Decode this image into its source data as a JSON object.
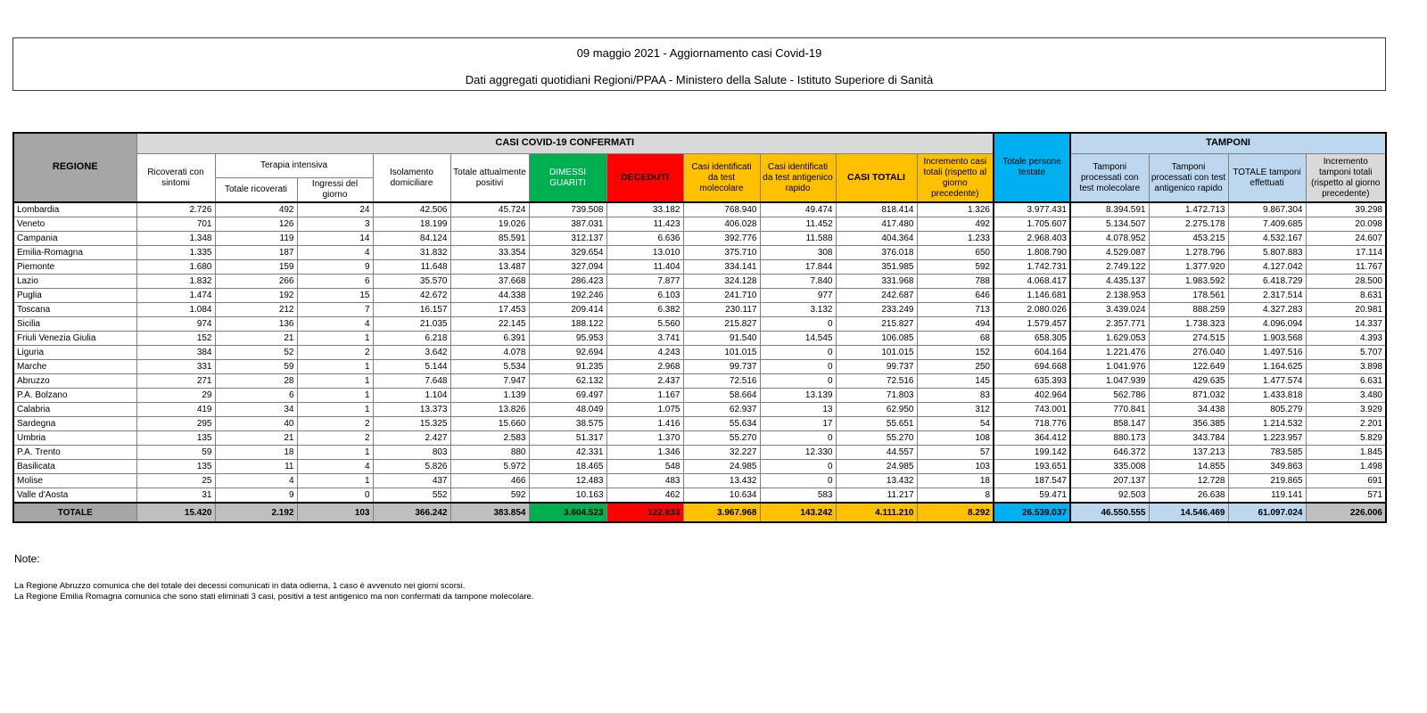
{
  "title": {
    "line1": "09 maggio 2021 - Aggiornamento casi Covid-19",
    "line2": "Dati aggregati quotidiani Regioni/PPAA - Ministero della Salute - Istituto Superiore di Sanità"
  },
  "colors": {
    "header_gray": "#A6A6A6",
    "band_gray": "#D9D9D9",
    "green": "#00B050",
    "red": "#FF0000",
    "yellow": "#FFC000",
    "cyan": "#00B0F0",
    "light_blue": "#BDD7EE",
    "total_gray": "#BFBFBF"
  },
  "table": {
    "headers": {
      "regione": "REGIONE",
      "casi_confermati": "CASI COVID-19 CONFERMATI",
      "tamponi_band": "TAMPONI",
      "ricoverati": "Ricoverati con sintomi",
      "terapia_intensiva": "Terapia intensiva",
      "totale_ricoverati": "Totale ricoverati",
      "ingressi_giorno": "Ingressi del giorno",
      "isolamento": "Isolamento domiciliare",
      "attualmente_positivi": "Totale attualmente positivi",
      "dimessi": "DIMESSI GUARITI",
      "deceduti": "DECEDUTI",
      "casi_molecolare": "Casi identificati da test molecolare",
      "casi_antigenico": "Casi identificati da test antigenico rapido",
      "casi_totali": "CASI TOTALI",
      "incremento_casi": "Incremento casi totali (rispetto al giorno precedente)",
      "persone_testate": "Totale persone testate",
      "tamponi_molecolare": "Tamponi processati con test molecolare",
      "tamponi_antigenico": "Tamponi processati con test antigenico rapido",
      "totale_tamponi": "TOTALE tamponi effettuati",
      "incremento_tamponi": "Incremento tamponi totali (rispetto al giorno precedente)"
    },
    "rows": [
      {
        "region": "Lombardia",
        "values": [
          "2.726",
          "492",
          "24",
          "42.506",
          "45.724",
          "739.508",
          "33.182",
          "768.940",
          "49.474",
          "818.414",
          "1.326",
          "3.977.431",
          "8.394.591",
          "1.472.713",
          "9.867.304",
          "39.298"
        ]
      },
      {
        "region": "Veneto",
        "values": [
          "701",
          "126",
          "3",
          "18.199",
          "19.026",
          "387.031",
          "11.423",
          "406.028",
          "11.452",
          "417.480",
          "492",
          "1.705.607",
          "5.134.507",
          "2.275.178",
          "7.409.685",
          "20.098"
        ]
      },
      {
        "region": "Campania",
        "values": [
          "1.348",
          "119",
          "14",
          "84.124",
          "85.591",
          "312.137",
          "6.636",
          "392.776",
          "11.588",
          "404.364",
          "1.233",
          "2.968.403",
          "4.078.952",
          "453.215",
          "4.532.167",
          "24.607"
        ]
      },
      {
        "region": "Emilia-Romagna",
        "values": [
          "1.335",
          "187",
          "4",
          "31.832",
          "33.354",
          "329.654",
          "13.010",
          "375.710",
          "308",
          "376.018",
          "650",
          "1.808.790",
          "4.529.087",
          "1.278.796",
          "5.807.883",
          "17.114"
        ]
      },
      {
        "region": "Piemonte",
        "values": [
          "1.680",
          "159",
          "9",
          "11.648",
          "13.487",
          "327.094",
          "11.404",
          "334.141",
          "17.844",
          "351.985",
          "592",
          "1.742.731",
          "2.749.122",
          "1.377.920",
          "4.127.042",
          "11.767"
        ]
      },
      {
        "region": "Lazio",
        "values": [
          "1.832",
          "266",
          "6",
          "35.570",
          "37.668",
          "286.423",
          "7.877",
          "324.128",
          "7.840",
          "331.968",
          "788",
          "4.068.417",
          "4.435.137",
          "1.983.592",
          "6.418.729",
          "28.500"
        ]
      },
      {
        "region": "Puglia",
        "values": [
          "1.474",
          "192",
          "15",
          "42.672",
          "44.338",
          "192.246",
          "6.103",
          "241.710",
          "977",
          "242.687",
          "646",
          "1.146.681",
          "2.138.953",
          "178.561",
          "2.317.514",
          "8.631"
        ]
      },
      {
        "region": "Toscana",
        "values": [
          "1.084",
          "212",
          "7",
          "16.157",
          "17.453",
          "209.414",
          "6.382",
          "230.117",
          "3.132",
          "233.249",
          "713",
          "2.080.026",
          "3.439.024",
          "888.259",
          "4.327.283",
          "20.981"
        ]
      },
      {
        "region": "Sicilia",
        "values": [
          "974",
          "136",
          "4",
          "21.035",
          "22.145",
          "188.122",
          "5.560",
          "215.827",
          "0",
          "215.827",
          "494",
          "1.579.457",
          "2.357.771",
          "1.738.323",
          "4.096.094",
          "14.337"
        ]
      },
      {
        "region": "Friuli Venezia Giulia",
        "values": [
          "152",
          "21",
          "1",
          "6.218",
          "6.391",
          "95.953",
          "3.741",
          "91.540",
          "14.545",
          "106.085",
          "68",
          "658.305",
          "1.629.053",
          "274.515",
          "1.903.568",
          "4.393"
        ]
      },
      {
        "region": "Liguria",
        "values": [
          "384",
          "52",
          "2",
          "3.642",
          "4.078",
          "92.694",
          "4.243",
          "101.015",
          "0",
          "101.015",
          "152",
          "604.164",
          "1.221.476",
          "276.040",
          "1.497.516",
          "5.707"
        ]
      },
      {
        "region": "Marche",
        "values": [
          "331",
          "59",
          "1",
          "5.144",
          "5.534",
          "91.235",
          "2.968",
          "99.737",
          "0",
          "99.737",
          "250",
          "694.668",
          "1.041.976",
          "122.649",
          "1.164.625",
          "3.898"
        ]
      },
      {
        "region": "Abruzzo",
        "values": [
          "271",
          "28",
          "1",
          "7.648",
          "7.947",
          "62.132",
          "2.437",
          "72.516",
          "0",
          "72.516",
          "145",
          "635.393",
          "1.047.939",
          "429.635",
          "1.477.574",
          "6.631"
        ]
      },
      {
        "region": "P.A. Bolzano",
        "values": [
          "29",
          "6",
          "1",
          "1.104",
          "1.139",
          "69.497",
          "1.167",
          "58.664",
          "13.139",
          "71.803",
          "83",
          "402.964",
          "562.786",
          "871.032",
          "1.433.818",
          "3.480"
        ]
      },
      {
        "region": "Calabria",
        "values": [
          "419",
          "34",
          "1",
          "13.373",
          "13.826",
          "48.049",
          "1.075",
          "62.937",
          "13",
          "62.950",
          "312",
          "743.001",
          "770.841",
          "34.438",
          "805.279",
          "3.929"
        ]
      },
      {
        "region": "Sardegna",
        "values": [
          "295",
          "40",
          "2",
          "15.325",
          "15.660",
          "38.575",
          "1.416",
          "55.634",
          "17",
          "55.651",
          "54",
          "718.776",
          "858.147",
          "356.385",
          "1.214.532",
          "2.201"
        ]
      },
      {
        "region": "Umbria",
        "values": [
          "135",
          "21",
          "2",
          "2.427",
          "2.583",
          "51.317",
          "1.370",
          "55.270",
          "0",
          "55.270",
          "108",
          "364.412",
          "880.173",
          "343.784",
          "1.223.957",
          "5.829"
        ]
      },
      {
        "region": "P.A. Trento",
        "values": [
          "59",
          "18",
          "1",
          "803",
          "880",
          "42.331",
          "1.346",
          "32.227",
          "12.330",
          "44.557",
          "57",
          "199.142",
          "646.372",
          "137.213",
          "783.585",
          "1.845"
        ]
      },
      {
        "region": "Basilicata",
        "values": [
          "135",
          "11",
          "4",
          "5.826",
          "5.972",
          "18.465",
          "548",
          "24.985",
          "0",
          "24.985",
          "103",
          "193.651",
          "335.008",
          "14.855",
          "349.863",
          "1.498"
        ]
      },
      {
        "region": "Molise",
        "values": [
          "25",
          "4",
          "1",
          "437",
          "466",
          "12.483",
          "483",
          "13.432",
          "0",
          "13.432",
          "18",
          "187.547",
          "207.137",
          "12.728",
          "219.865",
          "691"
        ]
      },
      {
        "region": "Valle d'Aosta",
        "values": [
          "31",
          "9",
          "0",
          "552",
          "592",
          "10.163",
          "462",
          "10.634",
          "583",
          "11.217",
          "8",
          "59.471",
          "92.503",
          "26.638",
          "119.141",
          "571"
        ]
      }
    ],
    "total": {
      "region": "TOTALE",
      "values": [
        "15.420",
        "2.192",
        "103",
        "366.242",
        "383.854",
        "3.604.523",
        "122.833",
        "3.967.968",
        "143.242",
        "4.111.210",
        "8.292",
        "26.539.037",
        "46.550.555",
        "14.546.469",
        "61.097.024",
        "226.006"
      ]
    }
  },
  "notes": {
    "label": "Note:",
    "lines": [
      "La Regione Abruzzo comunica che del totale dei decessi comunicati in data odierna, 1 caso è avvenuto nei giorni scorsi.",
      "La Regione Emilia Romagna comunica che sono stati eliminati 3 casi, positivi a test antigenico ma non confermati da tampone molecolare."
    ]
  }
}
